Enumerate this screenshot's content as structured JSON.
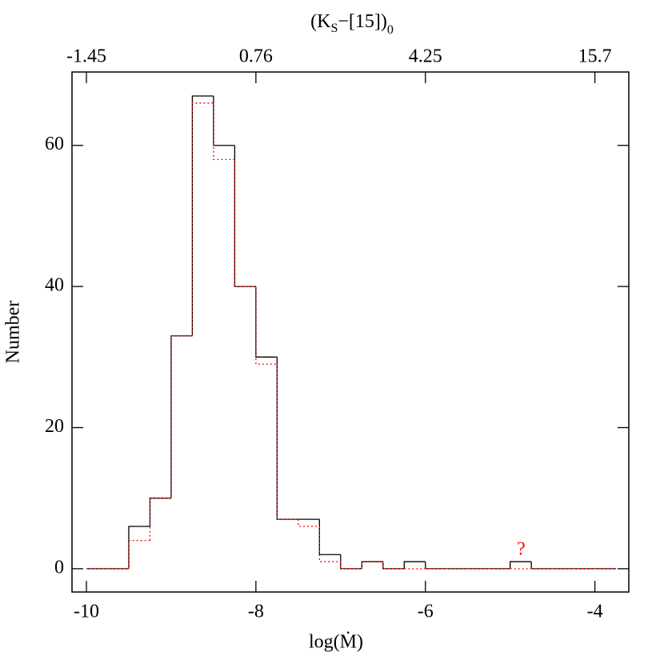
{
  "chart_data": {
    "type": "histogram",
    "x_label": "log(Ṁ)",
    "y_label": "Number",
    "x2_label": [
      "(K",
      "S",
      "−[15])",
      "0"
    ],
    "bins": [
      -10,
      -9.75,
      -9.5,
      -9.25,
      -9,
      -8.75,
      -8.5,
      -8.25,
      -8,
      -7.75,
      -7.5,
      -7.25,
      -7,
      -6.75,
      -6.5,
      -6.25,
      -6,
      -5.75,
      -5.5,
      -5.25,
      -5,
      -4.75,
      -4.5,
      -4.25,
      -4,
      -3.75
    ],
    "series": [
      {
        "color": "#000000",
        "linestyle": "solid",
        "values": [
          0,
          0,
          6,
          10,
          33,
          67,
          60,
          40,
          30,
          7,
          7,
          2,
          0,
          1,
          0,
          1,
          0,
          0,
          0,
          0,
          1,
          0,
          0,
          0,
          0
        ]
      },
      {
        "color": "#ff0000",
        "linestyle": "dotted",
        "values": [
          0,
          0,
          4,
          10,
          33,
          66,
          58,
          40,
          29,
          7,
          6,
          1,
          0,
          1,
          0,
          0,
          0,
          0,
          0,
          0,
          0,
          0,
          0,
          0,
          0
        ]
      }
    ],
    "annotations": [
      {
        "text": "?",
        "x": -4.87,
        "y": 2.6,
        "color": "#ff0000"
      }
    ],
    "xlim": [
      -10.17,
      -3.6
    ],
    "ylim": [
      -3.3,
      70.4
    ],
    "xticks": [
      -10,
      -8,
      -6,
      -4
    ],
    "yticks": [
      0,
      20,
      40,
      60
    ],
    "x2ticks": [
      -1.45,
      0.76,
      4.25,
      15.7
    ]
  }
}
